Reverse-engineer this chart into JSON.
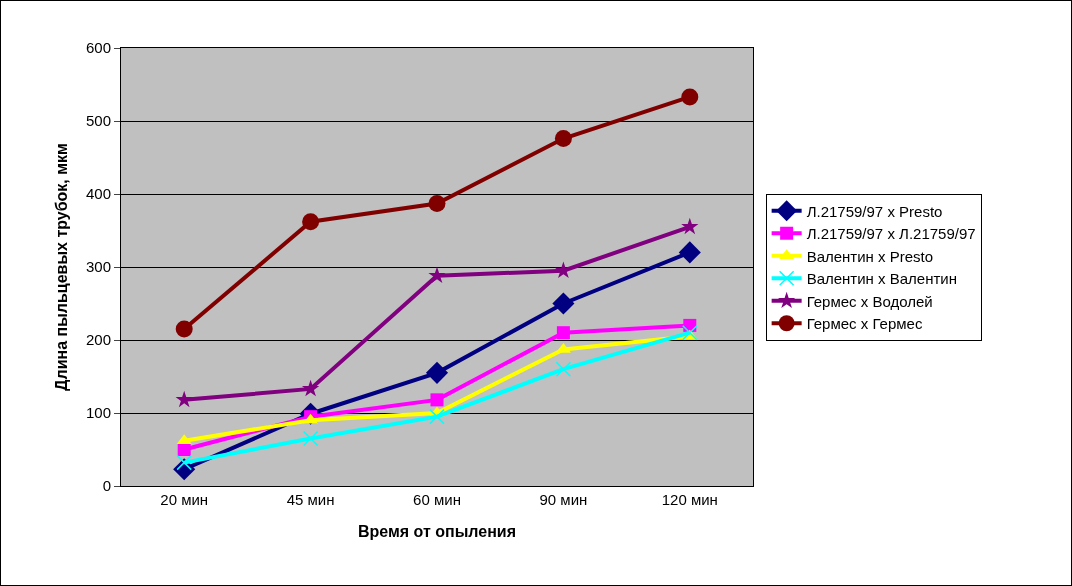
{
  "chart_data": {
    "type": "line",
    "xlabel": "Время от опыления",
    "ylabel": "Длина пыльцевых трубок, мкм",
    "categories": [
      "20 мин",
      "45 мин",
      "60 мин",
      "90 мин",
      "120 мин"
    ],
    "ylim": [
      0,
      600
    ],
    "yticks": [
      0,
      100,
      200,
      300,
      400,
      500,
      600
    ],
    "grid": "y",
    "legend": "right",
    "line_style": "solid",
    "series": [
      {
        "name": "Л.21759/97 x Presto",
        "color": "#000080",
        "marker": "diamond",
        "values": [
          23,
          99,
          155,
          250,
          320
        ]
      },
      {
        "name": "Л.21759/97 x Л.21759/97",
        "color": "#ff00ff",
        "marker": "square",
        "values": [
          50,
          95,
          118,
          210,
          220
        ]
      },
      {
        "name": "Валентин x Presto",
        "color": "#ffff00",
        "marker": "triangle",
        "values": [
          62,
          90,
          100,
          187,
          205
        ]
      },
      {
        "name": "Валентин x Валентин",
        "color": "#00ffff",
        "marker": "cross",
        "values": [
          32,
          65,
          95,
          160,
          210
        ]
      },
      {
        "name": "Гермес x Водолей",
        "color": "#800080",
        "marker": "star",
        "values": [
          118,
          133,
          288,
          295,
          355
        ]
      },
      {
        "name": "Гермес x Гермес",
        "color": "#800000",
        "marker": "circle",
        "values": [
          215,
          362,
          387,
          476,
          533
        ]
      }
    ]
  }
}
